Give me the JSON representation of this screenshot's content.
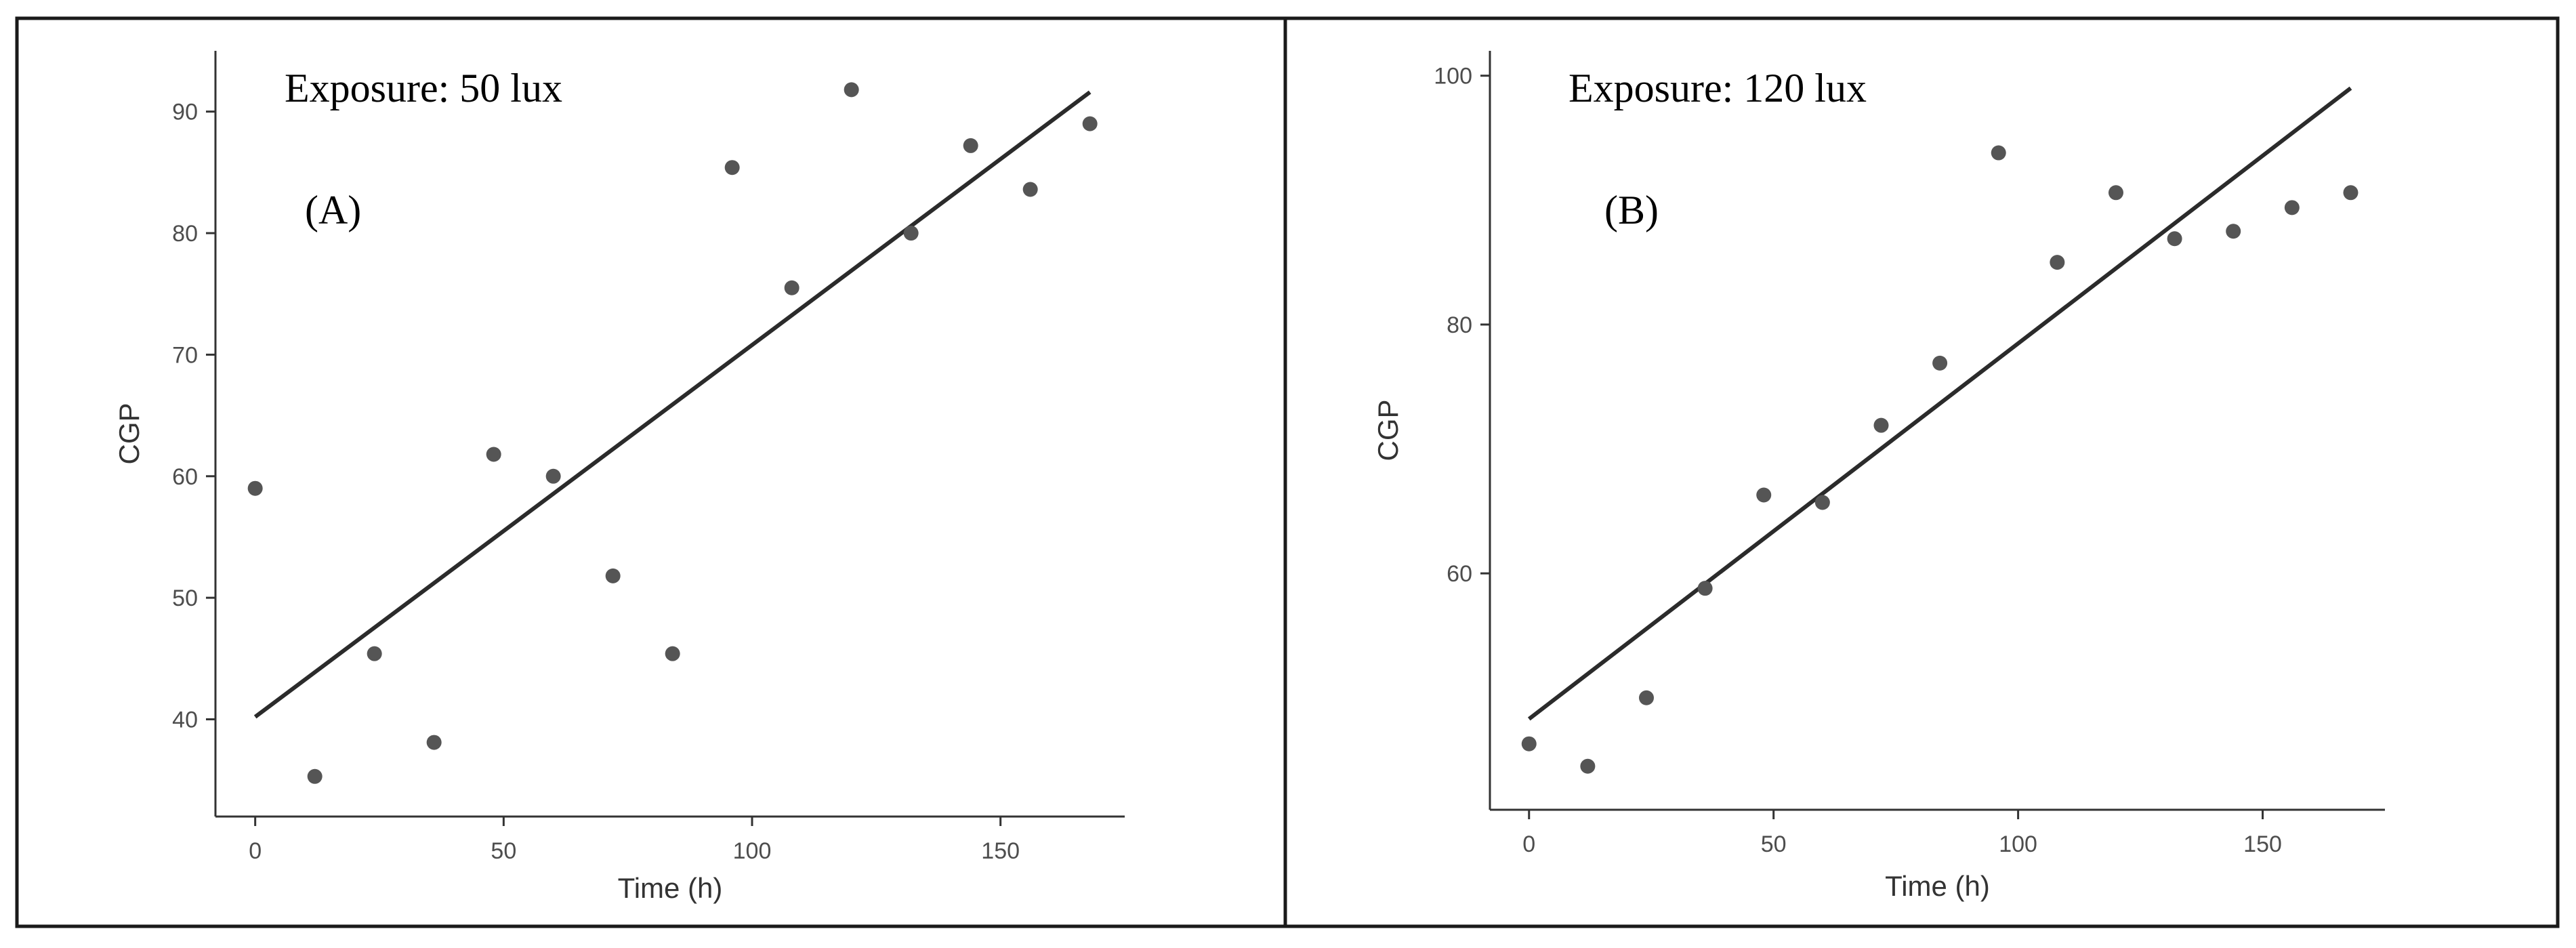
{
  "chart_data": [
    {
      "type": "scatter",
      "panel_label": "(A)",
      "annotation": "Exposure: 50 lux",
      "xlabel": "Time (h)",
      "ylabel": "CGP",
      "xlim": [
        -8,
        175
      ],
      "ylim": [
        32,
        95
      ],
      "xticks": [
        0,
        50,
        100,
        150
      ],
      "yticks": [
        40,
        50,
        60,
        70,
        80,
        90
      ],
      "grid": false,
      "points": {
        "x": [
          0,
          12,
          24,
          36,
          48,
          60,
          72,
          84,
          96,
          108,
          120,
          132,
          144,
          156,
          168
        ],
        "y": [
          59,
          35.3,
          45.4,
          38.1,
          61.8,
          60,
          51.8,
          45.4,
          85.4,
          75.5,
          91.8,
          80,
          87.2,
          83.6,
          89
        ]
      },
      "fit_line": {
        "x": [
          0,
          168
        ],
        "y": [
          40.2,
          91.6
        ]
      }
    },
    {
      "type": "scatter",
      "panel_label": "(B)",
      "annotation": "Exposure: 120 lux",
      "xlabel": "Time (h)",
      "ylabel": "CGP",
      "xlim": [
        -8,
        175
      ],
      "ylim": [
        41,
        102
      ],
      "xticks": [
        0,
        50,
        100,
        150
      ],
      "yticks": [
        60,
        80,
        100
      ],
      "grid": false,
      "points": {
        "x": [
          0,
          12,
          24,
          36,
          48,
          60,
          72,
          84,
          96,
          108,
          120,
          132,
          144,
          156,
          168
        ],
        "y": [
          46.3,
          44.5,
          50,
          58.8,
          66.3,
          65.7,
          71.9,
          76.9,
          93.8,
          85,
          90.6,
          86.9,
          87.5,
          89.4,
          90.6
        ]
      },
      "fit_line": {
        "x": [
          0,
          168
        ],
        "y": [
          48.3,
          99
        ]
      }
    }
  ]
}
